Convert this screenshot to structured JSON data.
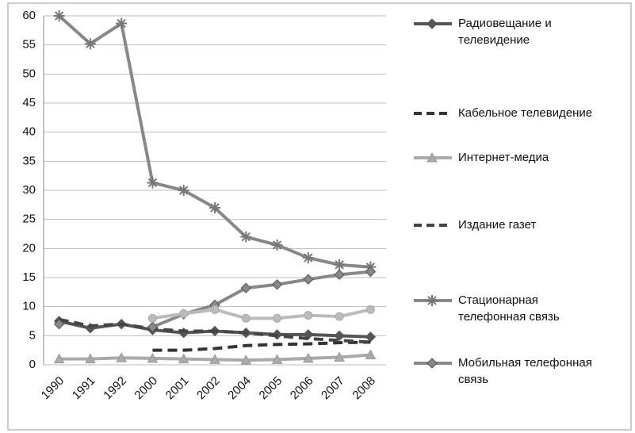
{
  "chart_data": {
    "type": "line",
    "categories": [
      "1990",
      "1991",
      "1992",
      "2000",
      "2001",
      "2002",
      "2004",
      "2005",
      "2006",
      "2007",
      "2008"
    ],
    "ylim": [
      0,
      60
    ],
    "yticks": [
      0,
      5,
      10,
      15,
      20,
      25,
      30,
      35,
      40,
      45,
      50,
      55,
      60
    ],
    "grid": true,
    "legend": "right",
    "series": [
      {
        "name": "Радиовещание и телевидение",
        "color": "#555555",
        "marker": "diamond",
        "values": [
          7.5,
          6.3,
          7,
          6,
          5.5,
          5.8,
          5.5,
          5.2,
          5.2,
          5,
          4.8
        ]
      },
      {
        "name": "Кабельное телевидение",
        "color": "#333333",
        "dash": true,
        "values": [
          null,
          null,
          null,
          2.5,
          2.5,
          2.8,
          3.3,
          3.5,
          3.6,
          3.8,
          3.9
        ]
      },
      {
        "name": "Интернет-медиа",
        "color": "#aaaaaa",
        "marker": "triangle",
        "values": [
          1,
          1,
          1.2,
          1.1,
          1,
          0.9,
          0.8,
          0.9,
          1.1,
          1.3,
          1.7
        ]
      },
      {
        "name": "Издание газет",
        "color": "#444444",
        "dash": true,
        "values": [
          7.8,
          6.7,
          7,
          6.2,
          5.8,
          5.8,
          5.5,
          5,
          4.5,
          4.2,
          3.9
        ]
      },
      {
        "name": "Стационарная телефонная связь",
        "color": "#888888",
        "marker": "star",
        "values": [
          60,
          55.2,
          58.7,
          31.3,
          30,
          27,
          22,
          20.6,
          18.4,
          17.2,
          16.8
        ]
      },
      {
        "name": "Мобильная телефонная связь",
        "color": "#888888",
        "marker": "diamond",
        "values": [
          7,
          null,
          null,
          6.5,
          8.7,
          10.3,
          13.2,
          13.8,
          14.7,
          15.5,
          16
        ]
      },
      {
        "color": "#bbbbbb",
        "marker": "circle",
        "values": [
          null,
          null,
          null,
          8,
          8.8,
          9.5,
          8,
          8,
          8.5,
          8.3,
          9.5
        ]
      }
    ]
  }
}
